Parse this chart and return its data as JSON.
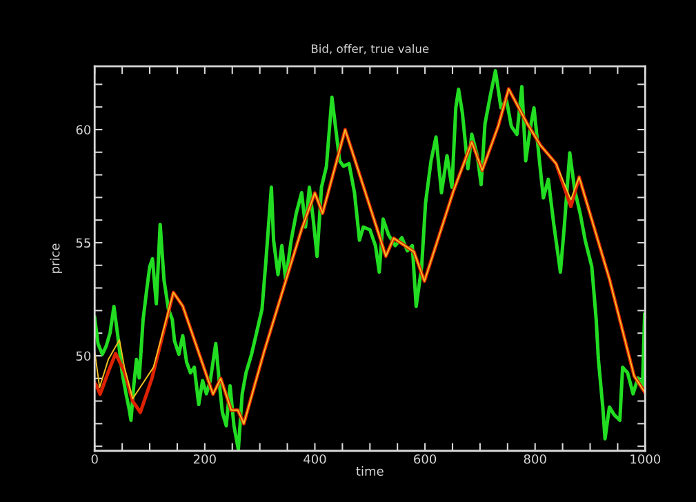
{
  "chart_data": {
    "type": "line",
    "title": "Bid, offer, true value",
    "xlabel": "time",
    "ylabel": "price",
    "xlim": [
      0,
      1000
    ],
    "ylim": [
      45.8,
      62.8
    ],
    "xticks": [
      0,
      {
        "value": 50,
        "label": null
      },
      {
        "value": 100,
        "label": null
      },
      {
        "value": 150,
        "label": null
      },
      200,
      {
        "value": 250,
        "label": null
      },
      {
        "value": 300,
        "label": null
      },
      {
        "value": 350,
        "label": null
      },
      400,
      {
        "value": 450,
        "label": null
      },
      {
        "value": 500,
        "label": null
      },
      {
        "value": 550,
        "label": null
      },
      600,
      {
        "value": 650,
        "label": null
      },
      {
        "value": 700,
        "label": null
      },
      {
        "value": 750,
        "label": null
      },
      800,
      {
        "value": 850,
        "label": null
      },
      {
        "value": 900,
        "label": null
      },
      {
        "value": 950,
        "label": null
      },
      1000
    ],
    "yticks": [
      {
        "value": 46,
        "label": null
      },
      {
        "value": 47,
        "label": null
      },
      {
        "value": 48,
        "label": null
      },
      {
        "value": 49,
        "label": null
      },
      50,
      {
        "value": 51,
        "label": null
      },
      {
        "value": 52,
        "label": null
      },
      {
        "value": 53,
        "label": null
      },
      {
        "value": 54,
        "label": null
      },
      55,
      {
        "value": 56,
        "label": null
      },
      {
        "value": 57,
        "label": null
      },
      {
        "value": 58,
        "label": null
      },
      {
        "value": 59,
        "label": null
      },
      60,
      {
        "value": 61,
        "label": null
      },
      {
        "value": 62,
        "label": null
      }
    ],
    "grid": false,
    "legend": false,
    "marker": "none",
    "line_style": "solid",
    "series": [
      {
        "color": "#22dd22",
        "x": [
          0,
          6,
          14,
          21,
          28,
          35,
          42,
          50,
          57,
          62,
          66,
          71,
          76,
          81,
          88,
          95,
          100,
          105,
          112,
          119,
          126,
          134,
          141,
          145,
          153,
          160,
          167,
          174,
          181,
          189,
          196,
          203,
          210,
          220,
          227,
          232,
          239,
          246,
          253,
          261,
          268,
          275,
          285,
          294,
          304,
          311,
          321,
          325,
          333,
          340,
          347,
          357,
          366,
          376,
          383,
          390,
          397,
          404,
          412,
          421,
          431,
          438,
          445,
          452,
          462,
          472,
          481,
          488,
          500,
          510,
          517,
          524,
          534,
          546,
          558,
          568,
          577,
          584,
          594,
          601,
          611,
          620,
          630,
          640,
          649,
          656,
          661,
          668,
          678,
          685,
          695,
          702,
          709,
          719,
          728,
          738,
          748,
          757,
          767,
          776,
          783,
          791,
          798,
          807,
          815,
          824,
          834,
          846,
          853,
          863,
          872,
          882,
          891,
          903,
          911,
          915,
          923,
          927,
          935,
          944,
          954,
          959,
          968,
          978,
          987,
          995,
          999
        ],
        "values": [
          51.7,
          50.54,
          50.07,
          50.43,
          51.01,
          52.18,
          50.89,
          49.25,
          48.32,
          47.73,
          47.15,
          48.67,
          49.84,
          49.02,
          51.6,
          53.0,
          53.94,
          54.29,
          52.3,
          55.81,
          53.35,
          52.06,
          51.6,
          50.66,
          50.07,
          50.89,
          49.72,
          49.25,
          49.49,
          47.85,
          48.9,
          48.32,
          48.9,
          50.54,
          48.67,
          47.5,
          46.91,
          48.67,
          46.91,
          45.86,
          48.32,
          49.25,
          50.07,
          51.01,
          52.06,
          54.17,
          57.45,
          55.11,
          53.59,
          54.87,
          53.35,
          55.11,
          56.28,
          57.21,
          55.69,
          57.45,
          56.04,
          54.4,
          57.45,
          58.38,
          61.43,
          60.02,
          58.62,
          58.38,
          58.5,
          57.21,
          55.11,
          55.69,
          55.57,
          54.87,
          53.7,
          56.04,
          55.34,
          54.87,
          55.22,
          54.64,
          54.87,
          52.18,
          53.94,
          56.75,
          58.62,
          59.67,
          57.21,
          58.85,
          57.45,
          60.96,
          61.78,
          60.73,
          58.27,
          59.79,
          58.85,
          57.57,
          60.26,
          61.54,
          62.6,
          60.96,
          61.31,
          60.14,
          59.79,
          61.9,
          58.62,
          60.02,
          60.96,
          58.85,
          56.98,
          57.8,
          55.81,
          53.7,
          55.69,
          58.97,
          57.33,
          56.28,
          55.11,
          53.94,
          51.6,
          49.84,
          47.73,
          46.33,
          47.73,
          47.38,
          47.15,
          49.49,
          49.25,
          48.32,
          49.02,
          48.55,
          51.83
        ]
      },
      {
        "color": "#dd2200",
        "x": [
          0,
          3,
          10,
          25,
          38,
          54,
          69,
          83,
          104,
          143,
          160,
          215,
          229,
          248,
          260,
          271,
          308,
          352,
          376,
          400,
          414,
          455,
          529,
          543,
          580,
          599,
          652,
          685,
          704,
          733,
          752,
          786,
          810,
          838,
          865,
          880,
          935,
          980,
          999
        ],
        "values": [
          48.8,
          48.7,
          48.3,
          49.3,
          50.1,
          49.3,
          48.0,
          47.5,
          49.0,
          52.8,
          52.2,
          48.3,
          49.0,
          47.6,
          47.6,
          47.0,
          50.2,
          53.7,
          55.6,
          57.2,
          56.3,
          60.0,
          54.4,
          55.2,
          54.6,
          53.3,
          57.3,
          59.45,
          58.2,
          60.15,
          61.8,
          60.25,
          59.3,
          58.5,
          56.6,
          57.9,
          53.4,
          49.1,
          48.4
        ]
      },
      {
        "color": "#f0c020",
        "x": [
          0,
          9,
          25,
          45,
          54,
          69,
          107,
          143,
          160,
          215,
          229,
          248,
          260,
          271,
          308,
          352,
          376,
          400,
          414,
          455,
          529,
          543,
          580,
          599,
          652,
          685,
          704,
          733,
          752,
          786,
          810,
          838,
          865,
          880,
          935,
          980,
          999
        ],
        "values": [
          50.2,
          48.6,
          49.85,
          50.7,
          49.5,
          48.1,
          49.5,
          52.8,
          52.2,
          48.3,
          49.0,
          47.6,
          47.6,
          47.0,
          50.2,
          53.7,
          55.6,
          57.2,
          56.3,
          60.0,
          54.4,
          55.2,
          54.6,
          53.3,
          57.3,
          59.45,
          58.2,
          60.15,
          61.8,
          60.25,
          59.3,
          58.5,
          56.9,
          57.9,
          53.4,
          49.1,
          48.4
        ]
      }
    ]
  }
}
